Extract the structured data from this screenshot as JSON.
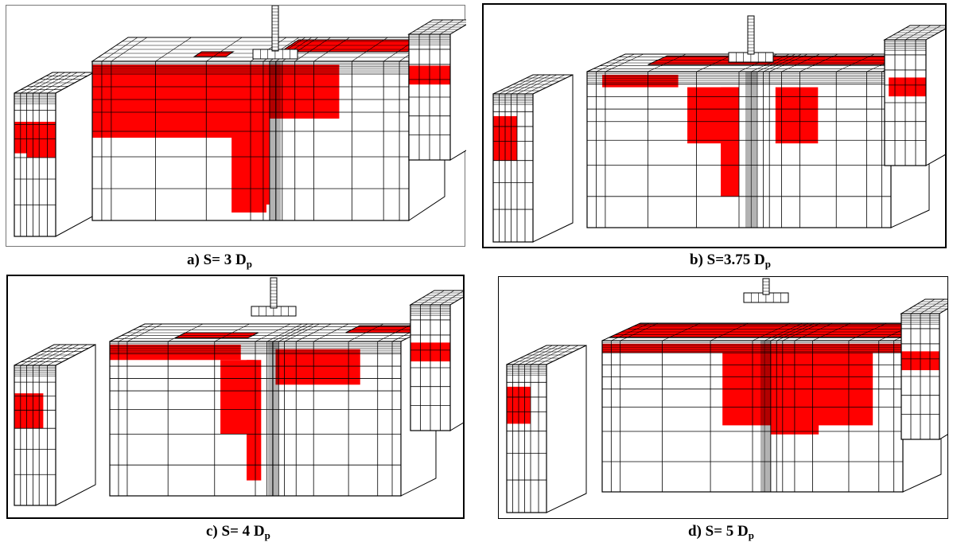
{
  "colors": {
    "highlight": "#ff0000",
    "mesh_line": "#000000",
    "background": "#ffffff",
    "frame": "#000000"
  },
  "panels": [
    {
      "id": "a",
      "caption_main": "a) S= 3 D",
      "caption_sub": "p"
    },
    {
      "id": "b",
      "caption_main": "b) S=3.75 D",
      "caption_sub": "p"
    },
    {
      "id": "c",
      "caption_main": "c) S= 4 D",
      "caption_sub": "p"
    },
    {
      "id": "d",
      "caption_main": "d) S= 5 D",
      "caption_sub": "p"
    }
  ]
}
